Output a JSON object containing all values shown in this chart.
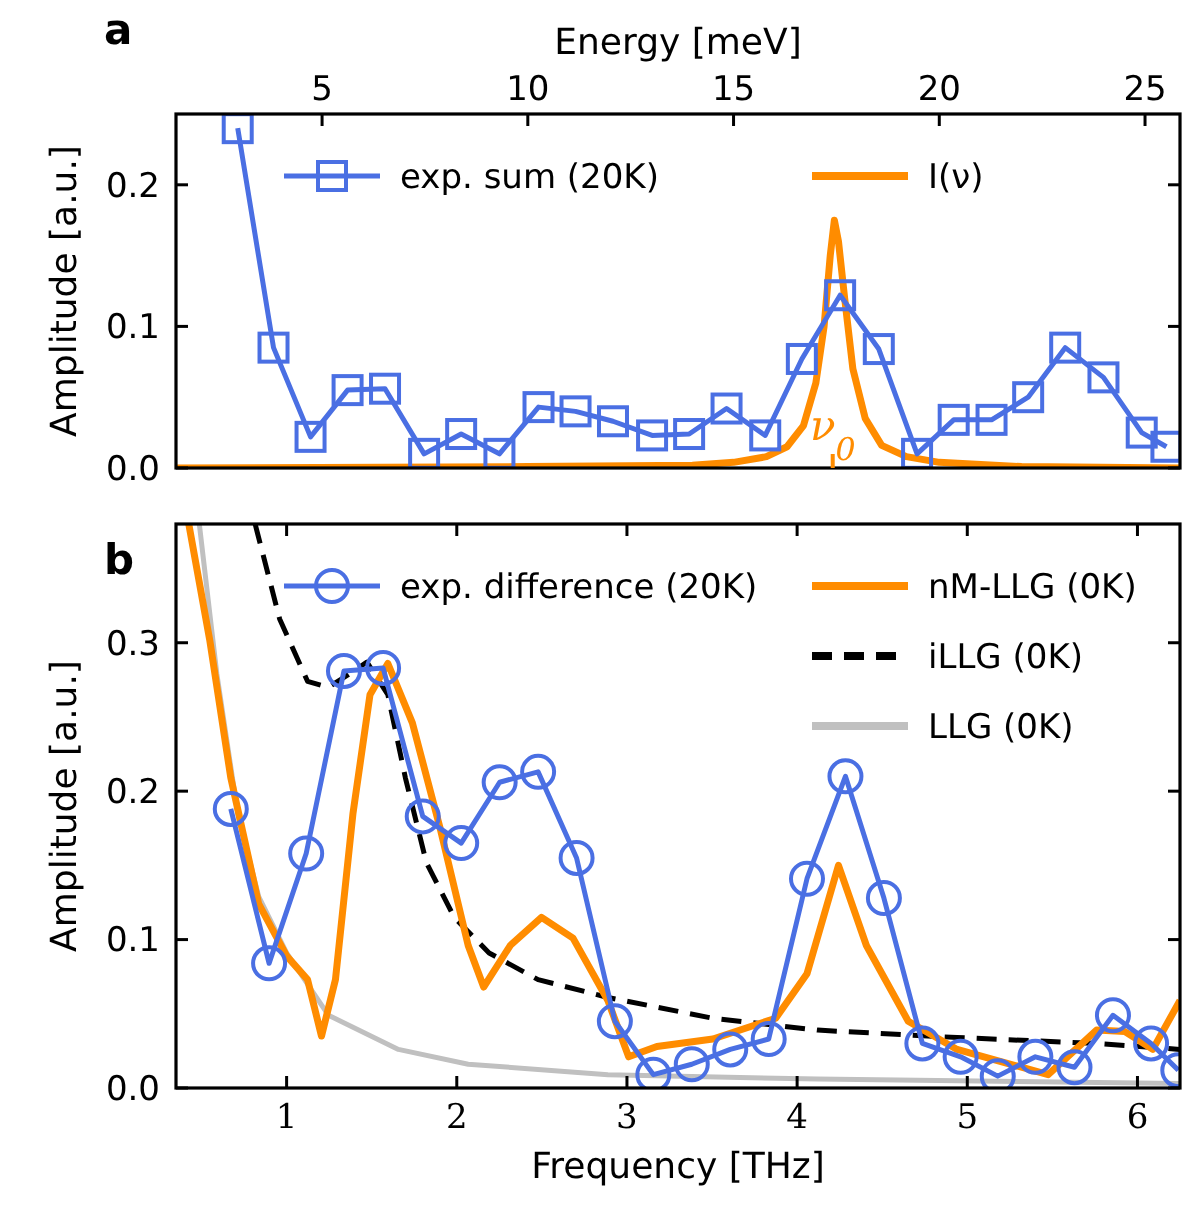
{
  "chart_data": [
    {
      "type": "line",
      "title": "a",
      "xlabel": "Energy [meV]",
      "ylabel": "Amplitude [a.u.]",
      "xlim": [
        1.45,
        25.85
      ],
      "xticks": [
        5,
        10,
        15,
        20,
        25
      ],
      "ylim": [
        0,
        0.25
      ],
      "yticks": [
        {
          "value": 0,
          "label": "0.0"
        },
        {
          "value": 0.1,
          "label": "0.1"
        },
        {
          "value": 0.2,
          "label": "0.2"
        }
      ],
      "legend": "top",
      "series": [
        {
          "name": "exp. sum (20K)",
          "color": "#4a6fe3",
          "marker": "square",
          "x": [
            2.95,
            3.82,
            4.72,
            5.62,
            6.53,
            7.48,
            8.38,
            9.31,
            10.26,
            11.16,
            12.07,
            13.02,
            13.92,
            14.83,
            15.77,
            16.66,
            17.59,
            18.53,
            19.46,
            20.35,
            21.27,
            22.16,
            23.06,
            23.99,
            24.92,
            25.52
          ],
          "values": [
            0.24,
            0.085,
            0.022,
            0.055,
            0.056,
            0.01,
            0.024,
            0.01,
            0.043,
            0.04,
            0.033,
            0.023,
            0.024,
            0.042,
            0.023,
            0.077,
            0.122,
            0.084,
            0.01,
            0.034,
            0.034,
            0.05,
            0.085,
            0.064,
            0.025,
            0.015
          ]
        },
        {
          "name": "I(ν)",
          "color": "#ff8c00",
          "marker": "none",
          "x": [
            1.45,
            10,
            14,
            15,
            15.8,
            16.3,
            16.7,
            17.0,
            17.2,
            17.35,
            17.45,
            17.55,
            17.7,
            17.9,
            18.2,
            18.6,
            19.2,
            20,
            22,
            25.85
          ],
          "values": [
            0,
            0.001,
            0.002,
            0.004,
            0.008,
            0.015,
            0.03,
            0.06,
            0.1,
            0.15,
            0.175,
            0.16,
            0.12,
            0.07,
            0.035,
            0.016,
            0.008,
            0.004,
            0.001,
            0
          ]
        }
      ],
      "ref_lines": [
        {
          "axis": "x",
          "value": 17.41,
          "label": "ν$_{0}$",
          "color": "#ff8c00"
        }
      ]
    },
    {
      "type": "line",
      "title": "b",
      "xlabel": "Frequency [THz]",
      "ylabel": "Amplitude [a.u.]",
      "xlim": [
        0.35,
        6.25
      ],
      "xticks": [
        1,
        2,
        3,
        4,
        5,
        6
      ],
      "ylim": [
        0,
        0.38
      ],
      "yticks": [
        {
          "value": 0,
          "label": "0.0"
        },
        {
          "value": 0.1,
          "label": "0.1"
        },
        {
          "value": 0.2,
          "label": "0.2"
        },
        {
          "value": 0.3,
          "label": "0.3"
        }
      ],
      "legend": "top",
      "series": [
        {
          "name": "exp. difference (20K)",
          "color": "#4a6fe3",
          "marker": "circle",
          "x": [
            0.672,
            0.897,
            1.115,
            1.337,
            1.567,
            1.8,
            2.026,
            2.252,
            2.478,
            2.704,
            2.929,
            3.155,
            3.381,
            3.607,
            3.833,
            4.058,
            4.284,
            4.51,
            4.736,
            4.961,
            5.179,
            5.4,
            5.63,
            5.856,
            6.08,
            6.24
          ],
          "values": [
            0.188,
            0.084,
            0.158,
            0.281,
            0.283,
            0.183,
            0.165,
            0.206,
            0.213,
            0.155,
            0.045,
            0.009,
            0.016,
            0.026,
            0.033,
            0.141,
            0.21,
            0.128,
            0.03,
            0.021,
            0.008,
            0.021,
            0.014,
            0.049,
            0.03,
            0.012
          ]
        },
        {
          "name": "nM-LLG (0K)",
          "color": "#ff8c00",
          "marker": "none",
          "x": [
            0.425,
            0.548,
            0.672,
            0.836,
            1.0,
            1.123,
            1.205,
            1.287,
            1.39,
            1.49,
            1.595,
            1.739,
            1.9,
            2.067,
            2.158,
            2.314,
            2.498,
            2.683,
            2.888,
            3.01,
            3.176,
            3.505,
            3.874,
            4.058,
            4.243,
            4.407,
            4.653,
            4.94,
            5.475,
            5.76,
            5.926,
            6.09,
            6.25
          ],
          "values": [
            0.38,
            0.302,
            0.209,
            0.124,
            0.089,
            0.073,
            0.035,
            0.073,
            0.185,
            0.265,
            0.286,
            0.246,
            0.176,
            0.096,
            0.068,
            0.096,
            0.115,
            0.101,
            0.059,
            0.021,
            0.028,
            0.033,
            0.047,
            0.077,
            0.15,
            0.096,
            0.045,
            0.026,
            0.009,
            0.039,
            0.038,
            0.026,
            0.059
          ]
        },
        {
          "name": "iLLG (0K)",
          "color": "#000000",
          "marker": "none",
          "line_style": "dashed",
          "x": [
            0.815,
            0.959,
            1.123,
            1.246,
            1.37,
            1.472,
            1.595,
            1.698,
            1.821,
            1.985,
            2.19,
            2.478,
            2.888,
            3.505,
            4.12,
            4.94,
            5.76,
            6.25
          ],
          "values": [
            0.38,
            0.316,
            0.274,
            0.27,
            0.279,
            0.287,
            0.265,
            0.209,
            0.152,
            0.115,
            0.091,
            0.073,
            0.061,
            0.047,
            0.039,
            0.034,
            0.03,
            0.026
          ]
        },
        {
          "name": "LLG (0K)",
          "color": "#c0c0c0",
          "marker": "none",
          "x": [
            0.487,
            0.59,
            0.713,
            0.836,
            1.0,
            1.246,
            1.657,
            2.067,
            2.888,
            4.12,
            6.25
          ],
          "values": [
            0.38,
            0.279,
            0.185,
            0.129,
            0.091,
            0.049,
            0.026,
            0.016,
            0.009,
            0.006,
            0.003
          ]
        }
      ]
    }
  ]
}
